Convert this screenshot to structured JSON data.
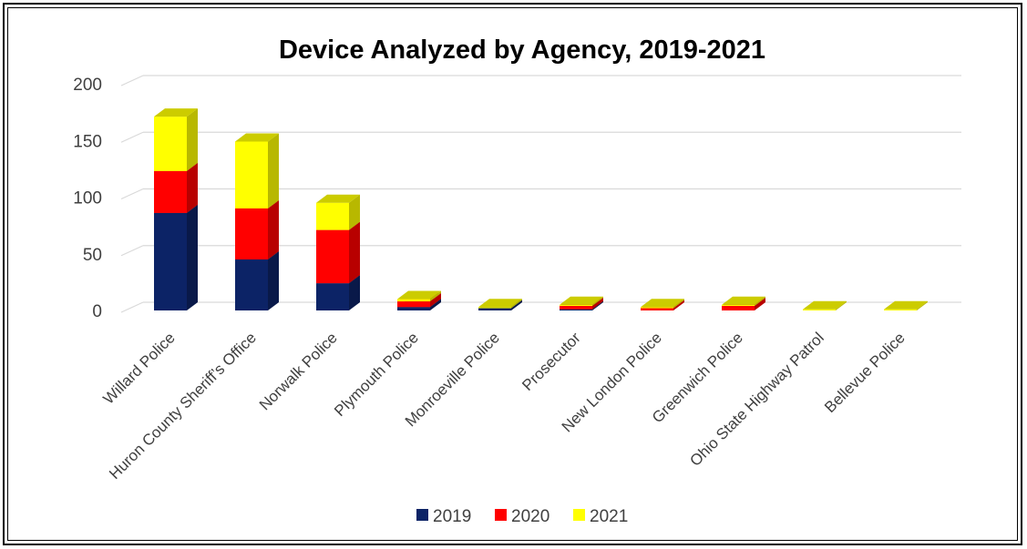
{
  "chart_data": {
    "type": "bar",
    "stacked": true,
    "title": "Device Analyzed by Agency, 2019-2021",
    "xlabel": "",
    "ylabel": "",
    "ylim": [
      0,
      200
    ],
    "yticks": [
      "0",
      "50",
      "100",
      "150",
      "200"
    ],
    "grid": true,
    "legend_position": "bottom",
    "categories": [
      "Willard Police",
      "Huron County Sheriff’s Office",
      "Norwalk Police",
      "Plymouth Police",
      "Monroeville Police",
      "Prosecutor",
      "New London Police",
      "Greenwich Police",
      "Ohio State Highway Patrol",
      "Bellevue Police"
    ],
    "series": [
      {
        "name": "2019",
        "color": "#0c2366",
        "values": [
          86,
          45,
          24,
          3,
          2,
          1,
          0,
          0,
          0,
          0
        ]
      },
      {
        "name": "2020",
        "color": "#ff0000",
        "values": [
          37,
          45,
          47,
          5,
          0,
          3,
          2,
          4,
          0,
          0
        ]
      },
      {
        "name": "2021",
        "color": "#ffff00",
        "values": [
          48,
          59,
          24,
          2,
          1,
          1,
          1,
          1,
          1,
          1
        ]
      }
    ]
  }
}
